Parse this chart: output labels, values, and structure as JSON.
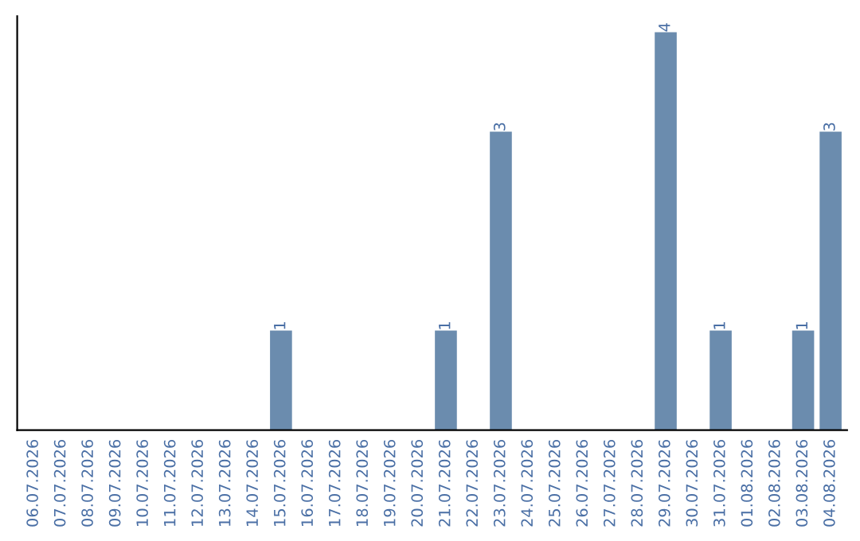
{
  "chart_data": {
    "type": "bar",
    "categories": [
      "06.07.2026",
      "07.07.2026",
      "08.07.2026",
      "09.07.2026",
      "10.07.2026",
      "11.07.2026",
      "12.07.2026",
      "13.07.2026",
      "14.07.2026",
      "15.07.2026",
      "16.07.2026",
      "17.07.2026",
      "18.07.2026",
      "19.07.2026",
      "20.07.2026",
      "21.07.2026",
      "22.07.2026",
      "23.07.2026",
      "24.07.2026",
      "25.07.2026",
      "26.07.2026",
      "27.07.2026",
      "28.07.2026",
      "29.07.2026",
      "30.07.2026",
      "31.07.2026",
      "01.08.2026",
      "02.08.2026",
      "03.08.2026",
      "04.08.2026"
    ],
    "values": [
      0,
      0,
      0,
      0,
      0,
      0,
      0,
      0,
      0,
      1,
      0,
      0,
      0,
      0,
      0,
      1,
      0,
      3,
      0,
      0,
      0,
      0,
      0,
      4,
      0,
      1,
      0,
      0,
      1,
      3
    ],
    "value_labels": [
      null,
      null,
      null,
      null,
      null,
      null,
      null,
      null,
      null,
      "1",
      null,
      null,
      null,
      null,
      null,
      "1",
      null,
      "3",
      null,
      null,
      null,
      null,
      null,
      "4",
      null,
      "1",
      null,
      null,
      "1",
      "3"
    ],
    "color": "#6b8cae",
    "grid": false,
    "legend": false,
    "tick_labels": "x"
  }
}
